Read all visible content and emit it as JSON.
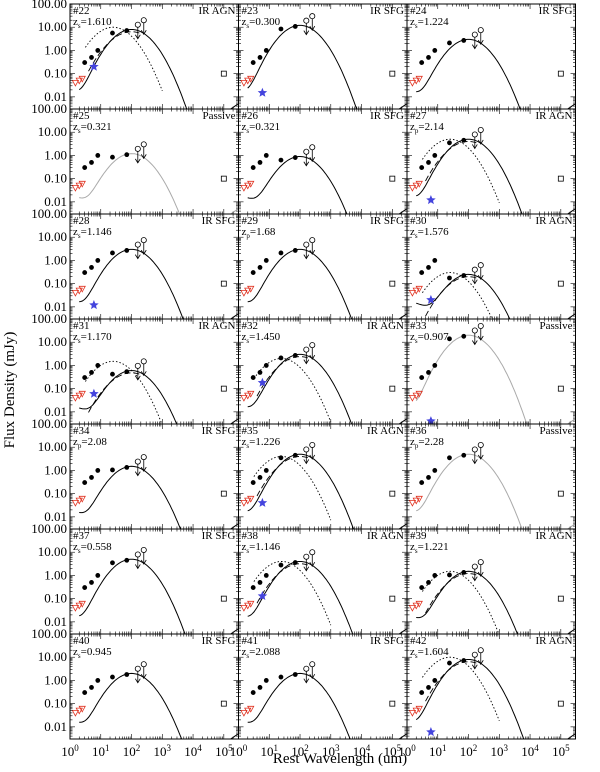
{
  "figure": {
    "xlabel": "Rest Wavelength (um)",
    "ylabel": "Flux Density (mJy)",
    "x_ticks": [
      "10^0",
      "10^1",
      "10^2",
      "10^3",
      "10^4",
      "10^5"
    ],
    "y_ticks": [
      "0.01",
      "0.10",
      "1.00",
      "10.00",
      "100.00"
    ]
  },
  "chart_data": [
    {
      "type": "scatter",
      "id": "#22",
      "z": "z",
      "zsub": "s",
      "zval": "=1.610",
      "class": "IR AGN",
      "agn": true,
      "passive": false,
      "peak": 8,
      "star": 0.2,
      "agnpk": 10,
      "xlim": [
        1,
        300000
      ],
      "ylim": [
        0.003,
        100
      ]
    },
    {
      "type": "scatter",
      "id": "#23",
      "z": "z",
      "zsub": "s",
      "zval": "=0.300",
      "class": "IR SFG",
      "agn": false,
      "passive": false,
      "peak": 12,
      "star": 0.015,
      "agnpk": 0,
      "xlim": [
        1,
        300000
      ],
      "ylim": [
        0.003,
        100
      ]
    },
    {
      "type": "scatter",
      "id": "#24",
      "z": "z",
      "zsub": "s",
      "zval": "=1.224",
      "class": "IR SFG",
      "agn": false,
      "passive": false,
      "peak": 3,
      "star": 0,
      "agnpk": 0,
      "xlim": [
        1,
        300000
      ],
      "ylim": [
        0.003,
        100
      ]
    },
    {
      "type": "scatter",
      "id": "#25",
      "z": "z",
      "zsub": "s",
      "zval": "=0.321",
      "class": "Passive",
      "agn": false,
      "passive": true,
      "peak": 1.2,
      "star": 0.002,
      "agnpk": 0,
      "xlim": [
        1,
        300000
      ],
      "ylim": [
        0.003,
        100
      ]
    },
    {
      "type": "scatter",
      "id": "#26",
      "z": "z",
      "zsub": "s",
      "zval": "=0.321",
      "class": "IR SFG",
      "agn": false,
      "passive": false,
      "peak": 0.9,
      "star": 0,
      "agnpk": 0,
      "xlim": [
        1,
        300000
      ],
      "ylim": [
        0.003,
        100
      ]
    },
    {
      "type": "scatter",
      "id": "#27",
      "z": "z",
      "zsub": "p",
      "zval": "=2.14",
      "class": "IR AGN",
      "agn": true,
      "passive": false,
      "peak": 5,
      "star": 0.012,
      "agnpk": 5,
      "xlim": [
        1,
        300000
      ],
      "ylim": [
        0.003,
        100
      ]
    },
    {
      "type": "scatter",
      "id": "#28",
      "z": "z",
      "zsub": "s",
      "zval": "=1.146",
      "class": "IR SFG",
      "agn": false,
      "passive": false,
      "peak": 3,
      "star": 0.012,
      "agnpk": 0,
      "xlim": [
        1,
        300000
      ],
      "ylim": [
        0.003,
        100
      ]
    },
    {
      "type": "scatter",
      "id": "#29",
      "z": "z",
      "zsub": "p",
      "zval": "=1.68",
      "class": "IR SFG",
      "agn": false,
      "passive": false,
      "peak": 3,
      "star": 0,
      "agnpk": 0,
      "xlim": [
        1,
        300000
      ],
      "ylim": [
        0.003,
        100
      ]
    },
    {
      "type": "scatter",
      "id": "#30",
      "z": "z",
      "zsub": "s",
      "zval": "=1.576",
      "class": "IR AGN",
      "agn": true,
      "passive": false,
      "peak": 0.25,
      "star": 0.02,
      "agnpk": 0.3,
      "xlim": [
        1,
        300000
      ],
      "ylim": [
        0.003,
        100
      ]
    },
    {
      "type": "scatter",
      "id": "#31",
      "z": "z",
      "zsub": "s",
      "zval": "=1.170",
      "class": "IR AGN",
      "agn": true,
      "passive": false,
      "peak": 0.6,
      "star": 0.06,
      "agnpk": 1.5,
      "xlim": [
        1,
        300000
      ],
      "ylim": [
        0.003,
        100
      ]
    },
    {
      "type": "scatter",
      "id": "#32",
      "z": "z",
      "zsub": "s",
      "zval": "=1.450",
      "class": "IR AGN",
      "agn": true,
      "passive": false,
      "peak": 3,
      "star": 0.18,
      "agnpk": 2,
      "xlim": [
        1,
        300000
      ],
      "ylim": [
        0.003,
        100
      ]
    },
    {
      "type": "scatter",
      "id": "#33",
      "z": "z",
      "zsub": "s",
      "zval": "=0.907",
      "class": "Passive",
      "agn": false,
      "passive": true,
      "peak": 20,
      "star": 0.004,
      "agnpk": 0,
      "xlim": [
        1,
        300000
      ],
      "ylim": [
        0.003,
        100
      ]
    },
    {
      "type": "scatter",
      "id": "#34",
      "z": "z",
      "zsub": "p",
      "zval": "=2.08",
      "class": "IR SFG",
      "agn": false,
      "passive": false,
      "peak": 1.5,
      "star": 0,
      "agnpk": 0,
      "xlim": [
        1,
        300000
      ],
      "ylim": [
        0.003,
        100
      ]
    },
    {
      "type": "scatter",
      "id": "#35",
      "z": "z",
      "zsub": "s",
      "zval": "=1.226",
      "class": "IR AGN",
      "agn": true,
      "passive": false,
      "peak": 5,
      "star": 0.04,
      "agnpk": 4,
      "xlim": [
        1,
        300000
      ],
      "ylim": [
        0.003,
        100
      ]
    },
    {
      "type": "scatter",
      "id": "#36",
      "z": "z",
      "zsub": "p",
      "zval": "=2.28",
      "class": "Passive",
      "agn": false,
      "passive": true,
      "peak": 5,
      "star": 0,
      "agnpk": 0,
      "xlim": [
        1,
        300000
      ],
      "ylim": [
        0.003,
        100
      ]
    },
    {
      "type": "scatter",
      "id": "#37",
      "z": "z",
      "zsub": "s",
      "zval": "=0.558",
      "class": "IR SFG",
      "agn": false,
      "passive": false,
      "peak": 5,
      "star": 0,
      "agnpk": 0,
      "xlim": [
        1,
        300000
      ],
      "ylim": [
        0.003,
        100
      ]
    },
    {
      "type": "scatter",
      "id": "#38",
      "z": "z",
      "zsub": "s",
      "zval": "=1.146",
      "class": "IR AGN",
      "agn": true,
      "passive": false,
      "peak": 4,
      "star": 0.13,
      "agnpk": 4,
      "xlim": [
        1,
        300000
      ],
      "ylim": [
        0.003,
        100
      ]
    },
    {
      "type": "scatter",
      "id": "#39",
      "z": "z",
      "zsub": "s",
      "zval": "=1.221",
      "class": "IR AGN",
      "agn": true,
      "passive": false,
      "peak": 1.5,
      "star": 0,
      "agnpk": 1.5,
      "xlim": [
        1,
        300000
      ],
      "ylim": [
        0.003,
        100
      ]
    },
    {
      "type": "scatter",
      "id": "#40",
      "z": "z",
      "zsub": "s",
      "zval": "=0.945",
      "class": "IR SFG",
      "agn": false,
      "passive": false,
      "peak": 2,
      "star": 0,
      "agnpk": 0,
      "xlim": [
        1,
        300000
      ],
      "ylim": [
        0.003,
        100
      ]
    },
    {
      "type": "scatter",
      "id": "#41",
      "z": "z",
      "zsub": "s",
      "zval": "=2.088",
      "class": "IR SFG",
      "agn": false,
      "passive": false,
      "peak": 2,
      "star": 0,
      "agnpk": 0,
      "xlim": [
        1,
        300000
      ],
      "ylim": [
        0.003,
        100
      ]
    },
    {
      "type": "scatter",
      "id": "#42",
      "z": "z",
      "zsub": "s",
      "zval": "=1.604",
      "class": "IR AGN",
      "agn": true,
      "passive": false,
      "peak": 8,
      "star": 0.006,
      "agnpk": 10,
      "xlim": [
        1,
        300000
      ],
      "ylim": [
        0.003,
        100
      ]
    }
  ],
  "colors": {
    "axis": "#000000",
    "model": "#000000",
    "passive_model": "#aaaaaa",
    "triangle": "#e0301e",
    "star": "#4444dd"
  }
}
